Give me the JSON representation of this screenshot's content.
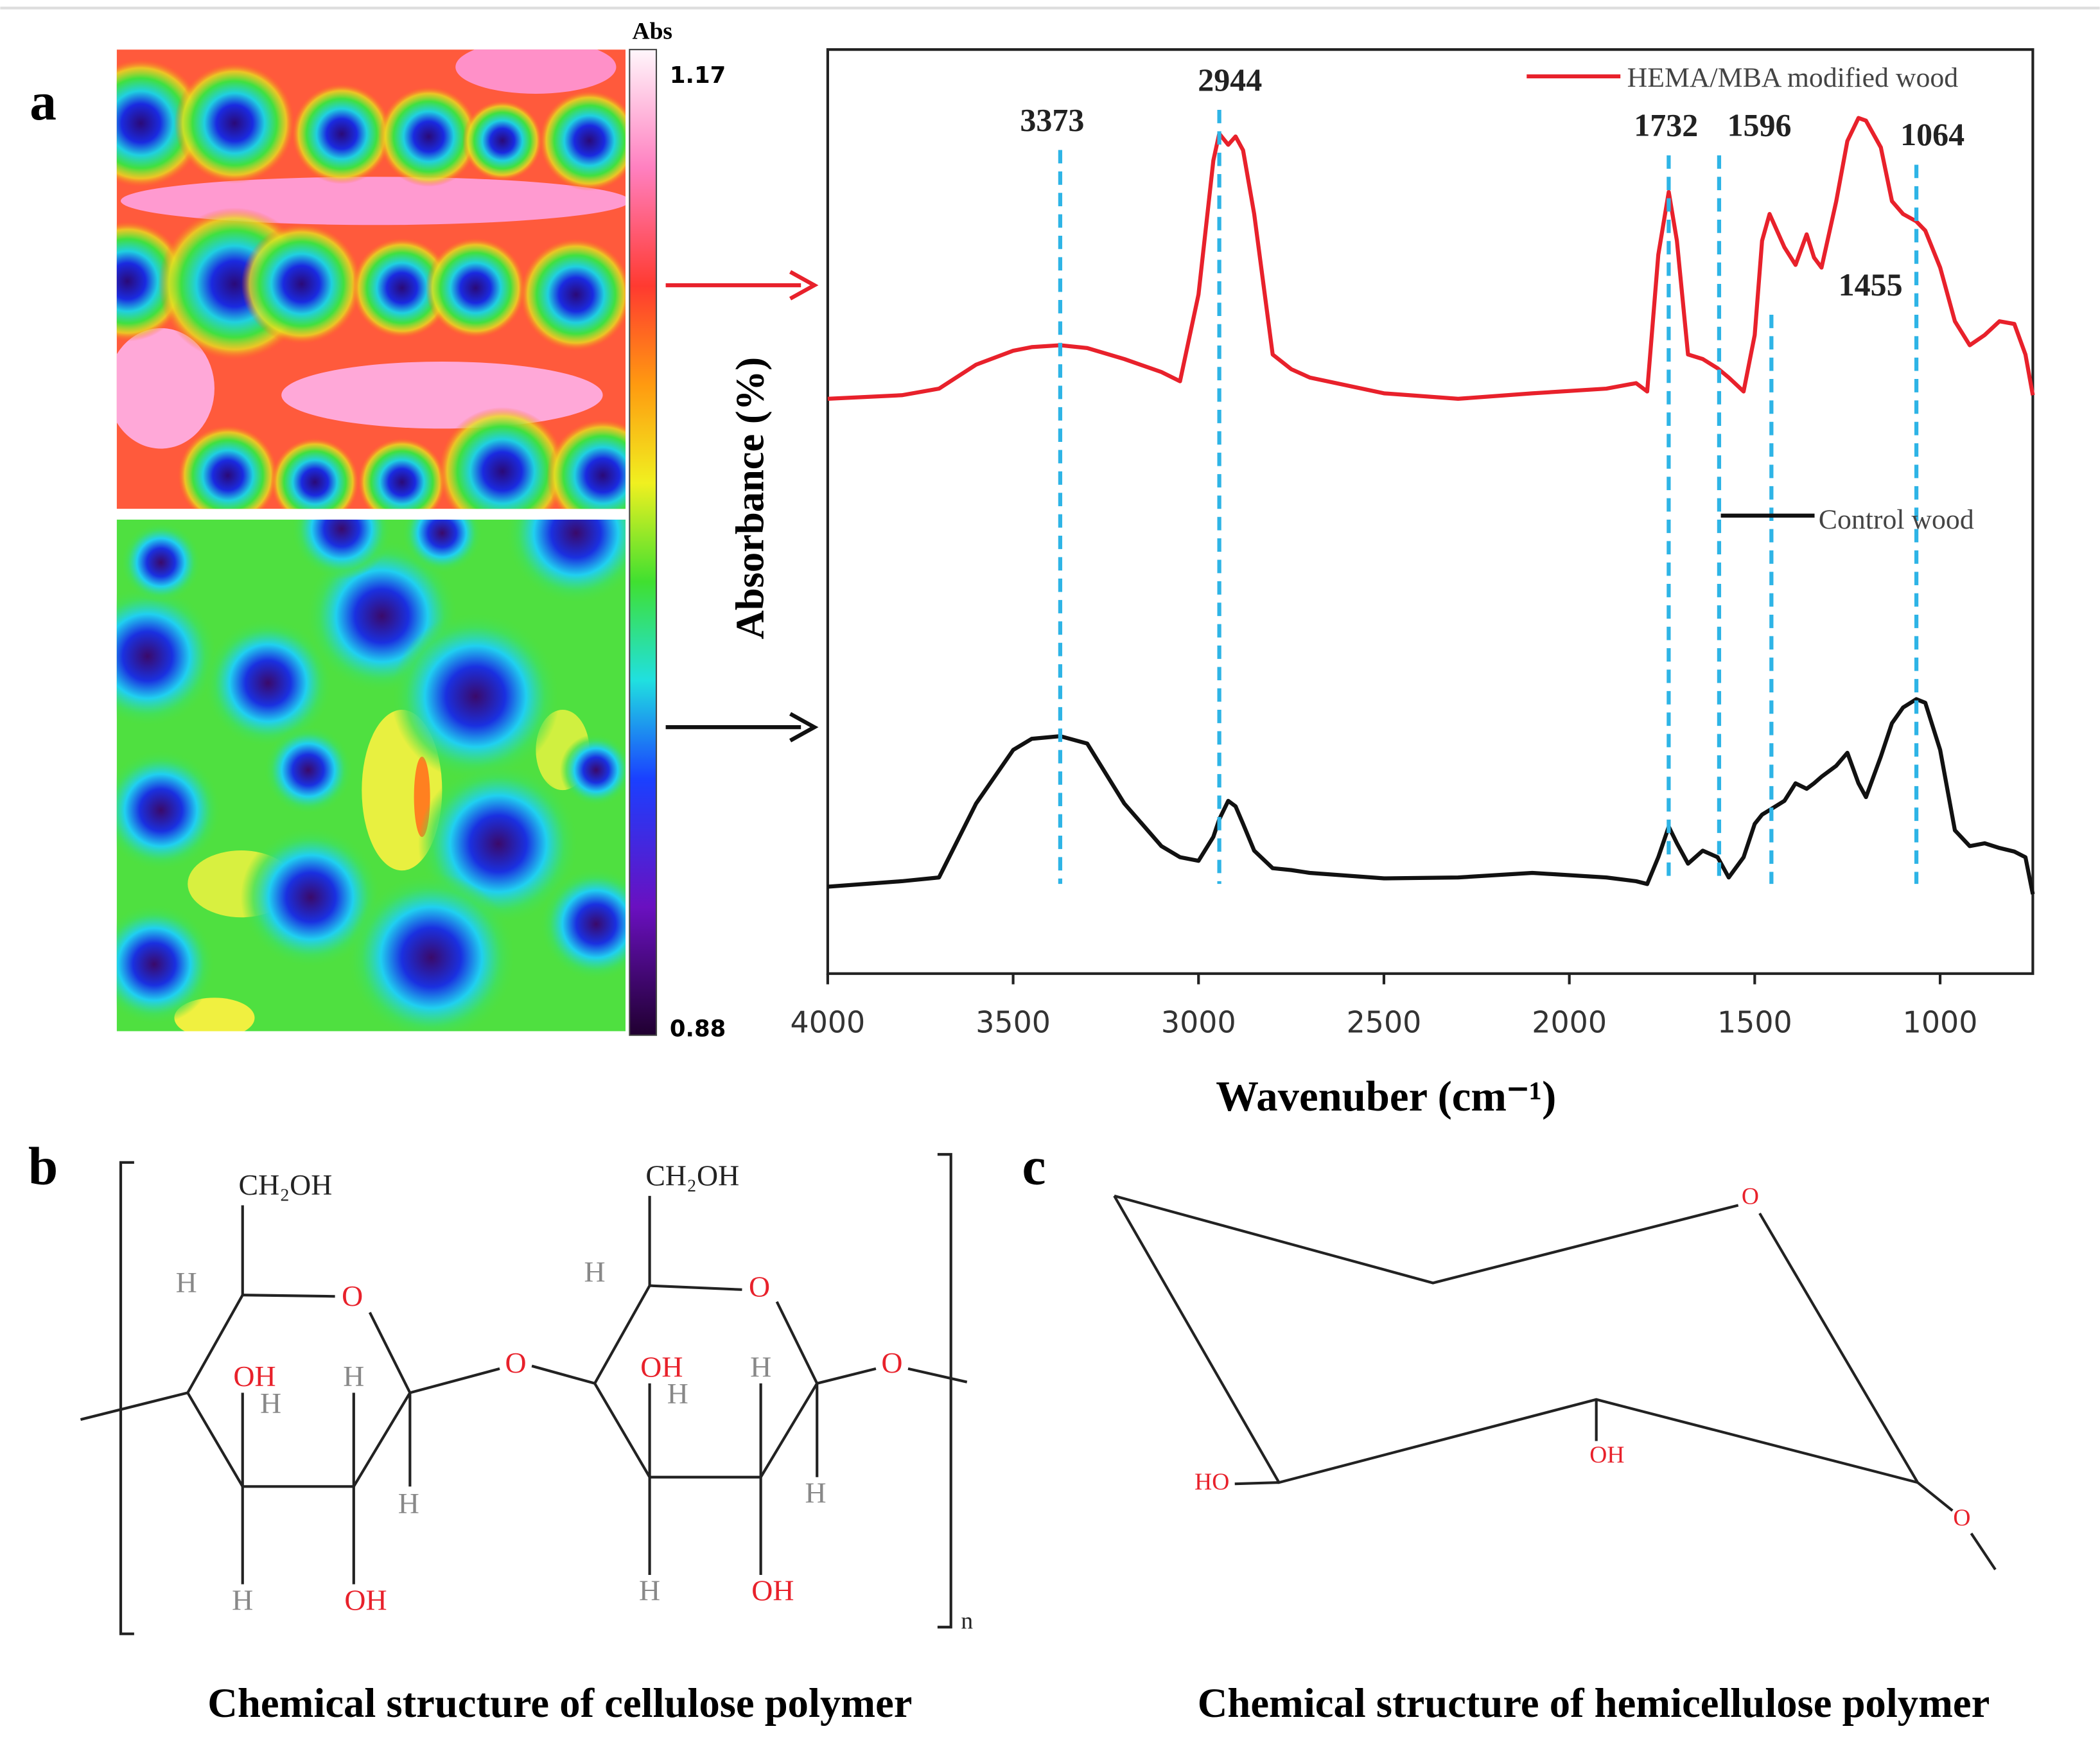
{
  "panel_labels": [
    "a",
    "b",
    "c"
  ],
  "colorbar": {
    "label": "Abs",
    "max": 1.17,
    "min": 0.88
  },
  "chart_data": {
    "type": "line",
    "xlabel": "Wavenuber (cm⁻¹)",
    "ylabel": "Absorbance (%)",
    "xlim": [
      4000,
      750
    ],
    "xticks": [
      4000,
      3500,
      3000,
      2500,
      2000,
      1500,
      1000
    ],
    "ylim": [
      0,
      100
    ],
    "x": [
      4000,
      3800,
      3700,
      3600,
      3500,
      3450,
      3373,
      3300,
      3200,
      3100,
      3050,
      3000,
      2960,
      2944,
      2920,
      2900,
      2880,
      2850,
      2800,
      2750,
      2700,
      2500,
      2300,
      2100,
      1900,
      1820,
      1790,
      1760,
      1732,
      1710,
      1680,
      1640,
      1600,
      1570,
      1530,
      1500,
      1480,
      1460,
      1420,
      1390,
      1360,
      1340,
      1320,
      1280,
      1250,
      1220,
      1200,
      1160,
      1130,
      1100,
      1064,
      1040,
      1000,
      960,
      920,
      880,
      840,
      800,
      770,
      750
    ],
    "series": [
      {
        "name": "HEMA/MBA modified wood",
        "color": "#e8212b",
        "values": [
          62.2,
          62.6,
          63.3,
          65.9,
          67.4,
          67.8,
          68.0,
          67.7,
          66.5,
          65.1,
          64.1,
          73.5,
          88.0,
          90.9,
          89.7,
          90.6,
          89.1,
          82.2,
          67.0,
          65.4,
          64.5,
          62.8,
          62.2,
          62.8,
          63.3,
          63.9,
          63.0,
          77.8,
          84.6,
          79.3,
          67.0,
          66.5,
          65.5,
          64.5,
          63.0,
          69.1,
          79.3,
          82.2,
          78.6,
          76.7,
          80.0,
          77.5,
          76.4,
          83.6,
          90.1,
          92.6,
          92.3,
          89.4,
          83.6,
          82.2,
          81.4,
          80.4,
          76.4,
          70.6,
          68.0,
          69.1,
          70.6,
          70.3,
          67.0,
          62.6
        ]
      },
      {
        "name": "Control wood",
        "color": "#111111",
        "values": [
          9.4,
          10.0,
          10.4,
          18.4,
          24.2,
          25.4,
          25.7,
          24.9,
          18.4,
          13.8,
          12.6,
          12.2,
          14.8,
          16.7,
          18.7,
          18.1,
          16.2,
          13.3,
          11.4,
          11.2,
          10.9,
          10.3,
          10.4,
          10.9,
          10.4,
          10.0,
          9.7,
          12.6,
          15.9,
          14.1,
          11.9,
          13.3,
          12.6,
          10.4,
          12.6,
          16.2,
          17.2,
          17.7,
          18.7,
          20.6,
          20.0,
          20.6,
          21.3,
          22.5,
          23.9,
          20.6,
          19.1,
          23.5,
          27.1,
          28.8,
          29.7,
          29.3,
          24.2,
          15.5,
          13.8,
          14.1,
          13.6,
          13.2,
          12.6,
          8.6
        ]
      }
    ],
    "annotations": [
      3373,
      2944,
      1732,
      1596,
      1455,
      1064
    ]
  },
  "cellulose": {
    "labels": [
      "CH₂OH",
      "CH₂OH",
      "H",
      "O",
      "OH",
      "H",
      "H",
      "O",
      "H",
      "O",
      "OH",
      "H",
      "H",
      "O",
      "H",
      "H",
      "H",
      "OH",
      "H",
      "OH"
    ],
    "subscript": "n",
    "caption": "Chemical structure of cellulose polymer"
  },
  "hemicellulose": {
    "labels": [
      "O",
      "OH",
      "HO",
      "O"
    ],
    "caption": "Chemical structure of hemicellulose polymer"
  }
}
